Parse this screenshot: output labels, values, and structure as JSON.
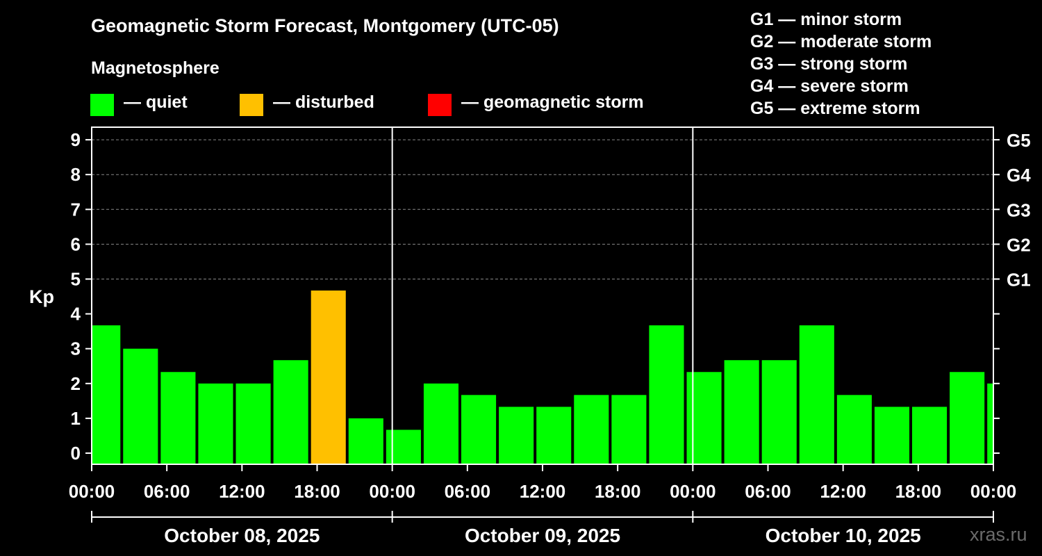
{
  "title": "Geomagnetic Storm Forecast, Montgomery (UTC-05)",
  "subtitle": "Magnetosphere",
  "legend": [
    {
      "label": "— quiet",
      "color": "#00ff00"
    },
    {
      "label": "— disturbed",
      "color": "#ffc000"
    },
    {
      "label": "— geomagnetic storm",
      "color": "#ff0000"
    }
  ],
  "g_scale": [
    "G1 — minor storm",
    "G2 — moderate storm",
    "G3 — strong storm",
    "G4 — severe storm",
    "G5 — extreme storm"
  ],
  "watermark": "xras.ru",
  "chart_data": {
    "type": "bar",
    "ylabel": "Kp",
    "ylim": [
      0,
      9
    ],
    "yticks": [
      "0",
      "1",
      "2",
      "3",
      "4",
      "5",
      "6",
      "7",
      "8",
      "9"
    ],
    "right_ticks": [
      {
        "value": 5,
        "label": "G1"
      },
      {
        "value": 6,
        "label": "G2"
      },
      {
        "value": 7,
        "label": "G3"
      },
      {
        "value": 8,
        "label": "G4"
      },
      {
        "value": 9,
        "label": "G5"
      }
    ],
    "xticks": [
      "00:00",
      "06:00",
      "12:00",
      "18:00",
      "00:00",
      "06:00",
      "12:00",
      "18:00",
      "00:00",
      "06:00",
      "12:00",
      "18:00",
      "00:00"
    ],
    "days": [
      "October 08, 2025",
      "October 09, 2025",
      "October 10, 2025"
    ],
    "grid": "dashed at 5–9",
    "values": [
      3.67,
      3.0,
      2.33,
      2.0,
      2.0,
      2.67,
      4.67,
      1.0,
      0.67,
      2.0,
      1.67,
      1.33,
      1.33,
      1.67,
      1.67,
      3.67,
      2.33,
      2.67,
      2.67,
      3.67,
      1.67,
      1.33,
      1.33,
      2.33,
      2.0
    ],
    "colors": [
      "quiet",
      "quiet",
      "quiet",
      "quiet",
      "quiet",
      "quiet",
      "disturbed",
      "quiet",
      "quiet",
      "quiet",
      "quiet",
      "quiet",
      "quiet",
      "quiet",
      "quiet",
      "quiet",
      "quiet",
      "quiet",
      "quiet",
      "quiet",
      "quiet",
      "quiet",
      "quiet",
      "quiet",
      "quiet"
    ],
    "color_map": {
      "quiet": "#00ff00",
      "disturbed": "#ffc000",
      "storm": "#ff0000"
    }
  }
}
